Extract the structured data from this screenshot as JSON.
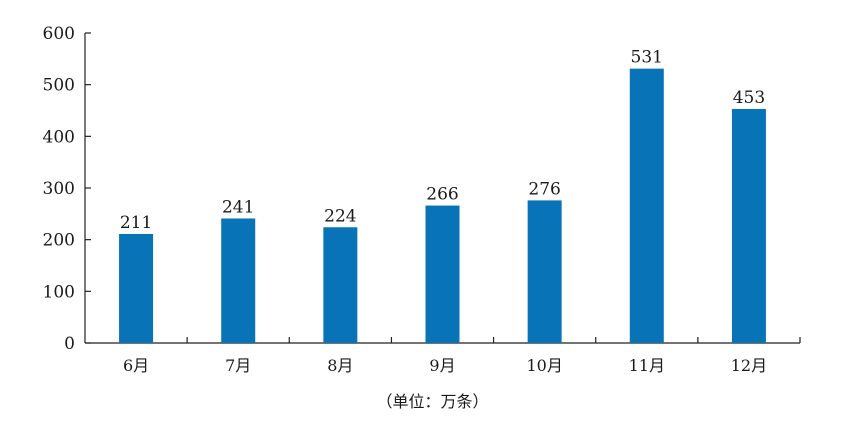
{
  "chart_data": {
    "type": "bar",
    "categories": [
      "6月",
      "7月",
      "8月",
      "9月",
      "10月",
      "11月",
      "12月"
    ],
    "values": [
      211,
      241,
      224,
      266,
      276,
      531,
      453
    ],
    "ylim": [
      0,
      600
    ],
    "yticks": [
      0,
      100,
      200,
      300,
      400,
      500,
      600
    ],
    "grid": false,
    "legend": "none",
    "bar_color": "#0874b7",
    "data_labels": true,
    "unit_caption": "（单位：万条）"
  }
}
